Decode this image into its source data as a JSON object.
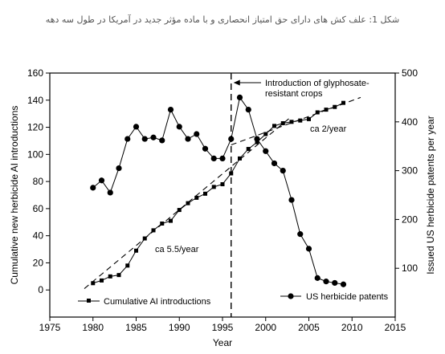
{
  "caption": "شکل 1: علف کش های دارای حق امتیاز انحصاری و با ماده مؤثر جدید در آمریکا در طول سه دهه",
  "chart_data": {
    "type": "line",
    "xlabel": "Year",
    "ylabel_left": "Cumulative new herbicide AI introductions",
    "ylabel_right": "Issued US herbicide patents per year",
    "xlim": [
      1975,
      2015
    ],
    "ylim_left": [
      -20,
      160
    ],
    "ylim_right": [
      0,
      500
    ],
    "x_ticks": [
      "1975",
      "1980",
      "1985",
      "1990",
      "1995",
      "2000",
      "2005",
      "2010",
      "2015"
    ],
    "y_left_ticks": [
      "0",
      "20",
      "40",
      "60",
      "80",
      "100",
      "120",
      "140",
      "160"
    ],
    "y_right_ticks": [
      "100",
      "200",
      "300",
      "400",
      "500"
    ],
    "grid": false,
    "annotation": {
      "lines": [
        "Introduction of glyphosate-",
        "resistant crops"
      ],
      "x": 1996
    },
    "trend_labels": [
      {
        "text": "ca 5.5/year"
      },
      {
        "text": "ca 2/year"
      }
    ],
    "trends": [
      {
        "x": [
          1979,
          2003
        ],
        "y": [
          1,
          128
        ]
      },
      {
        "x": [
          1996,
          2011
        ],
        "y": [
          107,
          142
        ]
      }
    ],
    "series": [
      {
        "name": "Cumulative AI introductions",
        "marker": "square",
        "axis": "left",
        "x": [
          1980,
          1981,
          1982,
          1983,
          1984,
          1985,
          1986,
          1987,
          1988,
          1989,
          1990,
          1991,
          1992,
          1993,
          1994,
          1995,
          1996,
          1997,
          1998,
          1999,
          2000,
          2001,
          2002,
          2003,
          2004,
          2005,
          2006,
          2007,
          2008,
          2009
        ],
        "y": [
          5,
          7,
          10,
          11,
          18,
          29,
          38,
          44,
          49,
          51,
          59,
          64,
          68,
          71,
          76,
          78,
          86,
          97,
          104,
          109,
          115,
          121,
          123,
          124,
          125,
          126,
          131,
          133,
          135,
          138
        ]
      },
      {
        "name": "US herbicide patents",
        "marker": "circle",
        "axis": "right",
        "x": [
          1980,
          1981,
          1982,
          1983,
          1984,
          1985,
          1986,
          1987,
          1988,
          1989,
          1990,
          1991,
          1992,
          1993,
          1994,
          1995,
          1996,
          1997,
          1998,
          1999,
          2000,
          2001,
          2002,
          2003,
          2004,
          2005,
          2006,
          2007,
          2008,
          2009
        ],
        "y": [
          265,
          280,
          255,
          305,
          365,
          390,
          365,
          368,
          362,
          425,
          390,
          365,
          375,
          345,
          325,
          325,
          365,
          450,
          425,
          365,
          340,
          315,
          300,
          240,
          170,
          140,
          80,
          73,
          70,
          67
        ]
      }
    ]
  }
}
